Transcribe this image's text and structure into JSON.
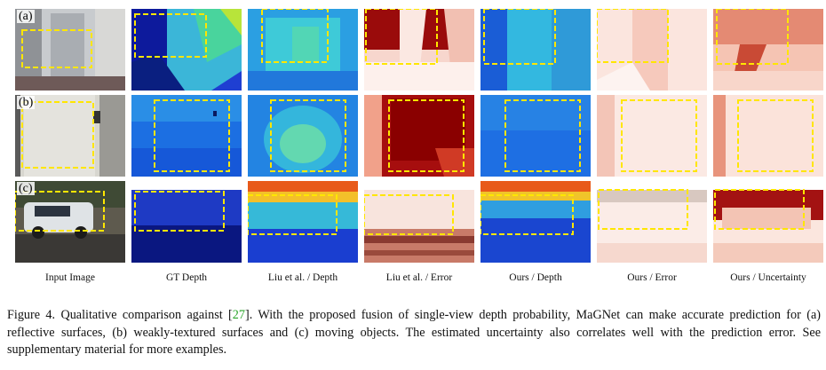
{
  "rows": [
    {
      "label": "(a)"
    },
    {
      "label": "(b)"
    },
    {
      "label": "(c)"
    }
  ],
  "columns": [
    "Input Image",
    "GT Depth",
    "Liu et al. / Depth",
    "Liu et al. / Error",
    "Ours / Depth",
    "Ours / Error",
    "Ours / Uncertainty"
  ],
  "caption": {
    "prefix": "Figure 4.  Qualitative comparison against [",
    "ref": "27",
    "suffix": "].  With the proposed fusion of single-view depth probability, MaGNet can make accurate prediction for (a) reflective surfaces, (b) weakly-textured surfaces and (c) moving objects. The estimated uncertainty also correlates well with the prediction error. See supplementary material for more examples."
  },
  "colors": {
    "highlight_box": "#ffe600",
    "depth_low": "#1a3fd6",
    "depth_high": "#35e0a0",
    "error_low": "#fff6f2",
    "error_high": "#8a0000"
  }
}
